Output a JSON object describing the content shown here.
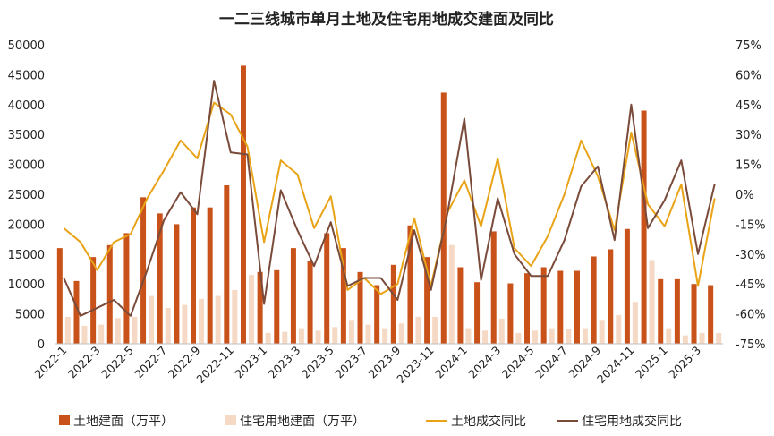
{
  "chart_data": {
    "type": "bar",
    "title": "一二三线城市单月土地及住宅用地成交建面及同比",
    "categories": [
      "2022-1",
      "2022-2",
      "2022-3",
      "2022-4",
      "2022-5",
      "2022-6",
      "2022-7",
      "2022-8",
      "2022-9",
      "2022-10",
      "2022-11",
      "2022-12",
      "2023-1",
      "2023-2",
      "2023-3",
      "2023-4",
      "2023-5",
      "2023-6",
      "2023-7",
      "2023-8",
      "2023-9",
      "2023-10",
      "2023-11",
      "2023-12",
      "2024-1",
      "2024-2",
      "2024-3",
      "2024-4",
      "2024-5",
      "2024-6",
      "2024-7",
      "2024-8",
      "2024-9",
      "2024-10",
      "2024-11",
      "2024-12",
      "2025-1",
      "2025-2",
      "2025-3",
      "2025-4"
    ],
    "x_tick_labels": [
      "2022-1",
      "2022-3",
      "2022-5",
      "2022-7",
      "2022-9",
      "2022-11",
      "2023-1",
      "2023-3",
      "2023-5",
      "2023-7",
      "2023-9",
      "2023-11",
      "2024-1",
      "2024-3",
      "2024-5",
      "2024-7",
      "2024-9",
      "2024-11",
      "2025-1",
      "2025-3"
    ],
    "y_left": {
      "min": 0,
      "max": 50000,
      "step": 5000
    },
    "y_right": {
      "min": -75,
      "max": 75,
      "step": 15,
      "suffix": "%"
    },
    "series": [
      {
        "name": "土地建面（万平）",
        "type": "bar",
        "axis": "left",
        "color": "#c9521a",
        "values": [
          16000,
          10500,
          14500,
          16500,
          18500,
          24500,
          21800,
          20000,
          22800,
          22800,
          26500,
          46500,
          12000,
          12300,
          16000,
          13800,
          18500,
          16000,
          12000,
          9800,
          13200,
          19800,
          14500,
          42000,
          12800,
          10300,
          18800,
          10100,
          11800,
          12800,
          12200,
          12200,
          14600,
          15800,
          19200,
          39000,
          10800,
          10800,
          10000,
          9800
        ]
      },
      {
        "name": "住宅用地建面（万平）",
        "type": "bar",
        "axis": "left",
        "color": "#f6d9c4",
        "values": [
          4500,
          3000,
          3200,
          4300,
          4500,
          8000,
          6000,
          6500,
          7500,
          8000,
          9000,
          11500,
          1800,
          2000,
          2600,
          2200,
          2800,
          4000,
          3200,
          2600,
          3400,
          4500,
          4500,
          16500,
          2600,
          2200,
          4200,
          1800,
          2200,
          2600,
          2400,
          2600,
          4000,
          4800,
          7000,
          14000,
          2600,
          1400,
          1800,
          1800
        ]
      },
      {
        "name": "土地成交同比",
        "type": "line",
        "axis": "right",
        "color": "#e8a317",
        "values": [
          -17,
          -24,
          -38,
          -24,
          -20,
          -2,
          12,
          27,
          18,
          46,
          40,
          24,
          -24,
          17,
          10,
          -17,
          -1,
          -48,
          -42,
          -50,
          -45,
          -12,
          -46,
          -9,
          7,
          -16,
          18,
          -27,
          -36,
          -21,
          0,
          27,
          9,
          -18,
          31,
          -5,
          -16,
          5,
          -46,
          -2
        ]
      },
      {
        "name": "住宅用地成交同比",
        "type": "line",
        "axis": "right",
        "color": "#7a4b3a",
        "values": [
          -42,
          -61,
          -57,
          -53,
          -61,
          -38,
          -13,
          1,
          -10,
          57,
          21,
          20,
          -55,
          2,
          -18,
          -36,
          -14,
          -46,
          -42,
          -42,
          -53,
          -18,
          -48,
          -9,
          38,
          -43,
          -2,
          -30,
          -41,
          -41,
          -23,
          4,
          14,
          -23,
          45,
          -17,
          -3,
          17,
          -30,
          5
        ]
      }
    ]
  }
}
